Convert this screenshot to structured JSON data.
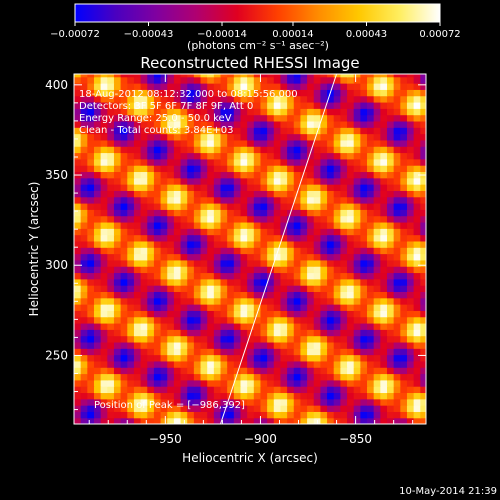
{
  "chart_data": {
    "type": "heatmap",
    "title": "Reconstructed RHESSI Image",
    "xlabel": "Heliocentric X (arcsec)",
    "ylabel": "Heliocentric Y (arcsec)",
    "xlim": [
      -998,
      -813
    ],
    "ylim": [
      212,
      406
    ],
    "xticks": [
      -950,
      -900,
      -850
    ],
    "yticks": [
      250,
      300,
      350,
      400
    ],
    "xtick_labels": [
      "−950",
      "−900",
      "−850"
    ],
    "ytick_labels": [
      "250",
      "300",
      "350",
      "400"
    ],
    "colorbar": {
      "min": -0.00072,
      "max": 0.00072,
      "ticks": [
        -0.00072,
        -0.00043,
        -0.00014,
        0.00014,
        0.00043,
        0.00072
      ],
      "tick_labels": [
        "−0.00072",
        "−0.00043",
        "−0.00014",
        "0.00014",
        "0.00043",
        "0.00072"
      ],
      "units_text": "(photons cm⁻² s⁻¹ asec⁻²)",
      "colors": [
        "#0000ff",
        "#4a00c0",
        "#8000a0",
        "#b00070",
        "#e00020",
        "#ff4000",
        "#ff8c00",
        "#ffc800",
        "#ffee60",
        "#ffffff"
      ]
    },
    "annotations": [
      "18-Aug-2012 08:12:32.000 to 08:15:56.000",
      "Detectors: 3F 5F 6F 7F 8F 9F, Att 0",
      "Energy Range: 25.0 - 50.0 keV",
      "Clean - Total counts: 3.84E+03"
    ],
    "peak_label": "Position of Peak = [−986,392]",
    "limb_line": [
      [
        -921,
        212
      ],
      [
        -860,
        406
      ]
    ],
    "pattern": {
      "description_values": "periodic diagonal fringe pattern",
      "fringe_period_arcsec": 36,
      "secondary_period_arcsec": 21,
      "fringe_angle_deg": 30
    }
  },
  "footer": {
    "timestamp": "10-May-2014 21:39"
  }
}
